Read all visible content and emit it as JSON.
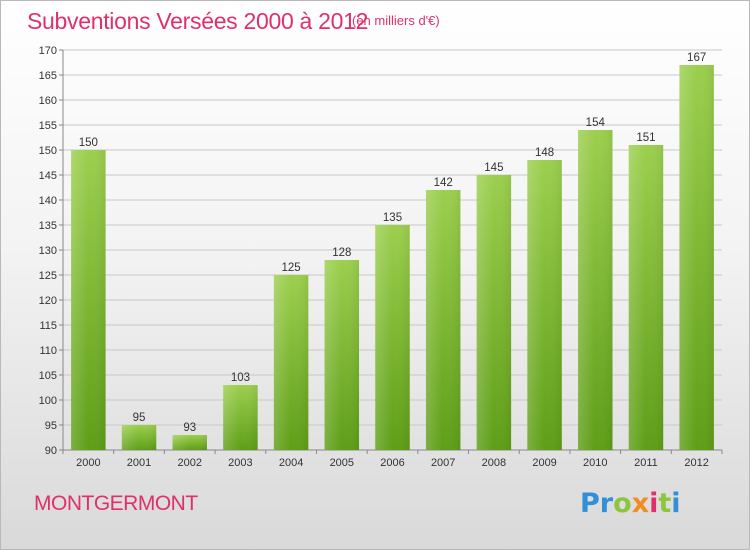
{
  "header": {
    "title": "Subventions Versées 2000 à 2012",
    "subtitle": "(en milliers d'€)"
  },
  "footer": {
    "commune": "MONTGERMONT",
    "logo_letters": [
      "P",
      "r",
      "o",
      "x",
      "i",
      "t",
      "i"
    ],
    "logo_colors": [
      "#2f8fd8",
      "#2f8fd8",
      "#8cc63f",
      "#f28c1e",
      "#e0306a",
      "#8cc63f",
      "#2f8fd8"
    ]
  },
  "chart_data": {
    "type": "bar",
    "categories": [
      "2000",
      "2001",
      "2002",
      "2003",
      "2004",
      "2005",
      "2006",
      "2007",
      "2008",
      "2009",
      "2010",
      "2011",
      "2012"
    ],
    "values": [
      150,
      95,
      93,
      103,
      125,
      128,
      135,
      142,
      145,
      148,
      154,
      151,
      167
    ],
    "data_labels": [
      "150",
      "95",
      "93",
      "103",
      "125",
      "128",
      "135",
      "142",
      "145",
      "148",
      "154",
      "151",
      "167"
    ],
    "title": "Subventions Versées 2000 à 2012",
    "ylim": [
      90,
      170
    ],
    "yticks": [
      90,
      95,
      100,
      105,
      110,
      115,
      120,
      125,
      130,
      135,
      140,
      145,
      150,
      155,
      160,
      165,
      170
    ],
    "grid": true,
    "bar_color_top": "#9ccf4e",
    "bar_color_bottom": "#5e9e17"
  }
}
